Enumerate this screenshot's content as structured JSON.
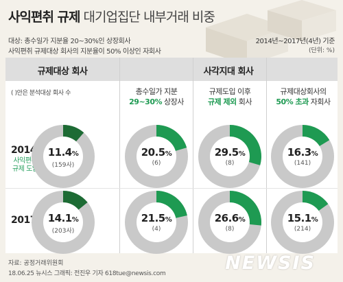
{
  "title": {
    "main": "사익편취 규제",
    "sub": "대기업집단 내부거래 비중"
  },
  "notes": [
    "대상: 총수일가 지분율 20~30%인 상장회사",
    "사익편취 규제대상 회사의 지분율이 50% 이상인 자회사"
  ],
  "period": "2014년~2017년(4년) 기준",
  "unit": "(단위: %)",
  "headers": {
    "left": "규제대상 회사",
    "right": "사각지대 회사"
  },
  "paren_note": "( )안은 분석대상 회사 수",
  "columns": [
    {
      "line1": "총수일가 지분",
      "line2_green": "29~30%",
      "line2_rest": " 상장사"
    },
    {
      "line1": "규제도입 이후",
      "line2_green": "규제 제외",
      "line2_rest": " 회사"
    },
    {
      "line1": "규제대상회사의",
      "line2_green": "50% 초과",
      "line2_rest": " 자회사"
    }
  ],
  "years": [
    {
      "label": "2014년",
      "sub1": "사익편취",
      "sub2": "규제 도입"
    },
    {
      "label": "2017년"
    }
  ],
  "colors": {
    "green": "#1e9a52",
    "dark_green": "#1d6b34",
    "grey": "#c9c9c9"
  },
  "chart_data": {
    "type": "pie",
    "title": "사익편취 규제 대기업집단 내부거래 비중",
    "unit": "%",
    "groups": [
      "규제대상 회사",
      "사각지대 회사",
      "사각지대 회사",
      "사각지대 회사"
    ],
    "categories": [
      "규제대상 회사",
      "총수일가 지분 29~30% 상장사",
      "규제도입 이후 규제 제외 회사",
      "규제대상회사의 50% 초과 자회사"
    ],
    "series": [
      {
        "name": "2014년",
        "values": [
          11.4,
          20.5,
          29.5,
          16.3
        ],
        "counts": [
          "159사",
          "6",
          "8",
          "141"
        ],
        "value_text": [
          "11.4",
          "20.5",
          "29.5",
          "16.3"
        ]
      },
      {
        "name": "2017년",
        "values": [
          14.1,
          21.5,
          26.6,
          15.1
        ],
        "counts": [
          "203사",
          "4",
          "8",
          "214"
        ],
        "value_text": [
          "14.1",
          "21.5",
          "26.6",
          "15.1"
        ]
      }
    ]
  },
  "footer": {
    "source": "자료: 공정거래위원회",
    "credit": "18.06.25 뉴시스 그래픽: 전진우 기자 618tue@newsis.com",
    "logo": "NEWSIS"
  }
}
